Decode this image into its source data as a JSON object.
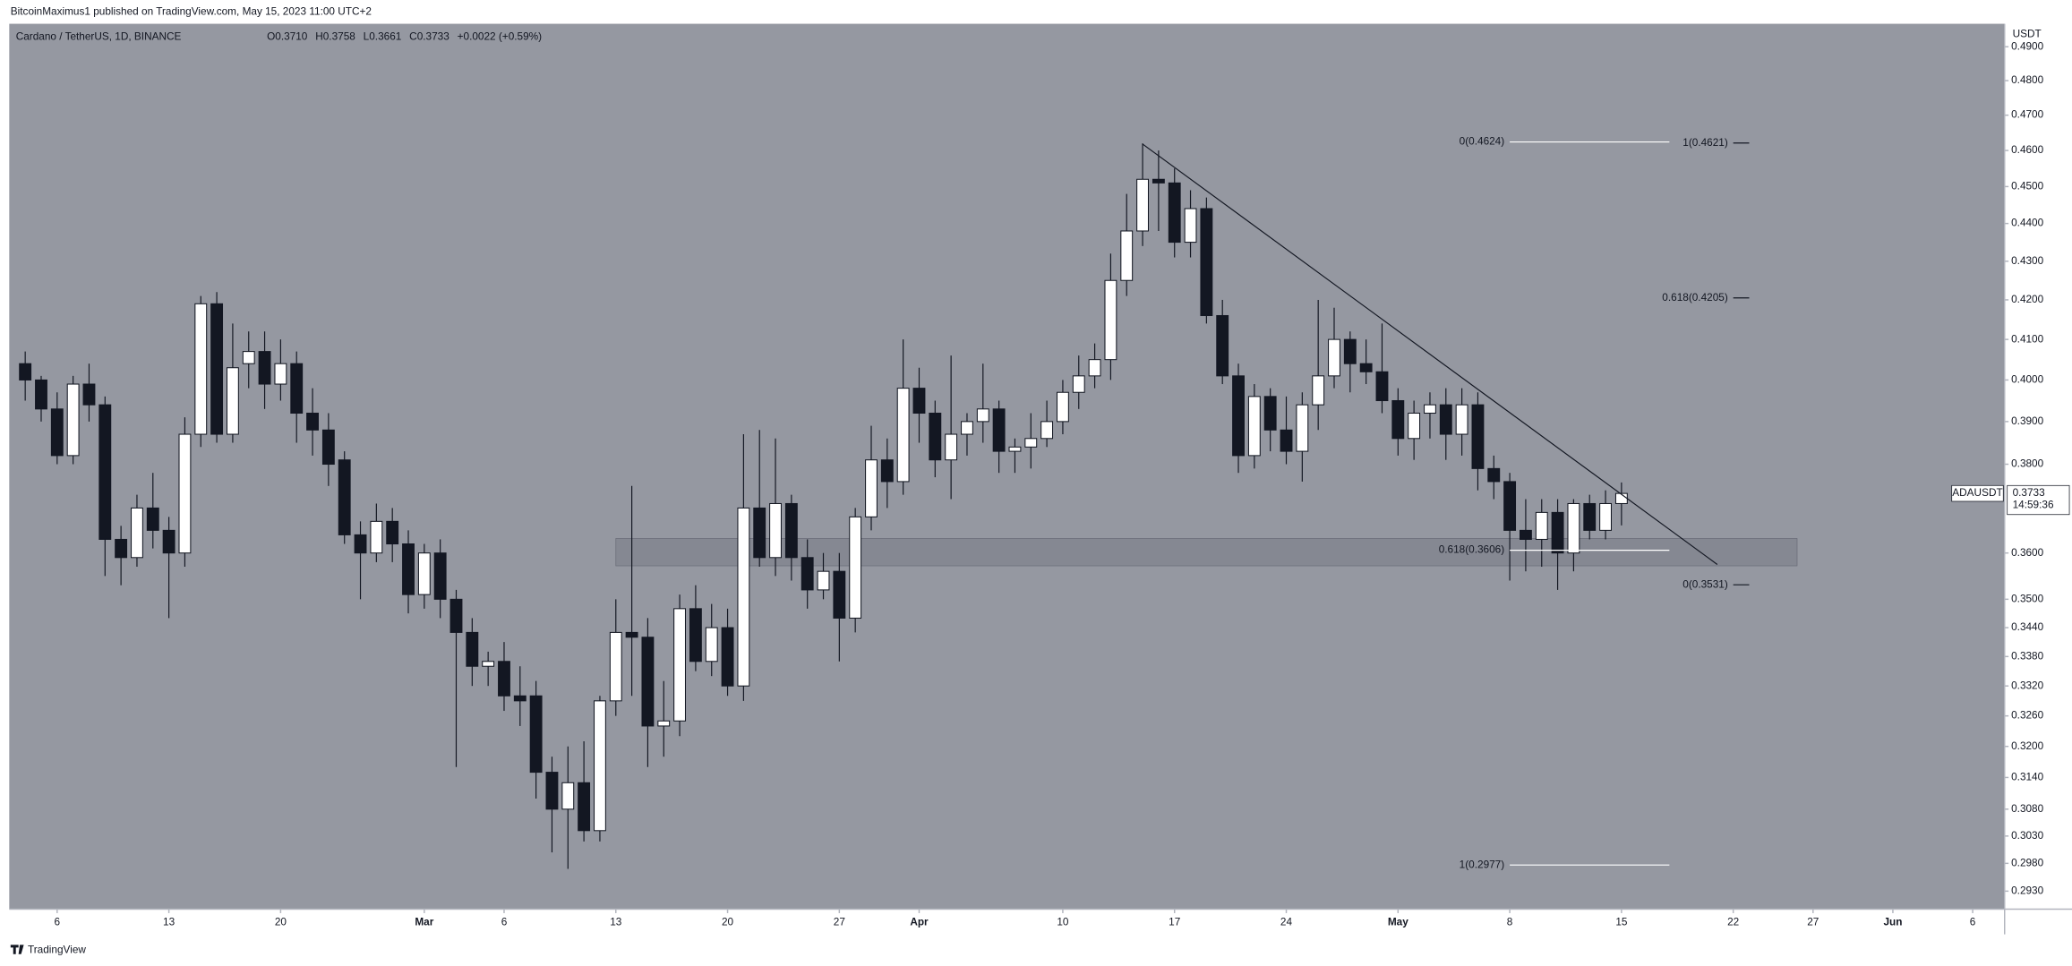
{
  "header": {
    "publisher": "BitcoinMaximus1 published on TradingView.com, May 15, 2023 11:00 UTC+2",
    "footer": "TradingView"
  },
  "chart_data": {
    "type": "candlestick",
    "symbol": "Cardano / TetherUS, 1D, BINANCE",
    "info": [
      "O0.3710",
      "H0.3758",
      "L0.3661",
      "C0.3733",
      "+0.0022 (+0.59%)"
    ],
    "y_unit": "USDT",
    "log_scale": true,
    "grid": false,
    "up_color": "#ffffff",
    "down_color": "#131722",
    "background": "#9598a1",
    "x": [
      "2023-02-04",
      "2023-02-05",
      "2023-02-06",
      "2023-02-07",
      "2023-02-08",
      "2023-02-09",
      "2023-02-10",
      "2023-02-11",
      "2023-02-12",
      "2023-02-13",
      "2023-02-14",
      "2023-02-15",
      "2023-02-16",
      "2023-02-17",
      "2023-02-18",
      "2023-02-19",
      "2023-02-20",
      "2023-02-21",
      "2023-02-22",
      "2023-02-23",
      "2023-02-24",
      "2023-02-25",
      "2023-02-26",
      "2023-02-27",
      "2023-02-28",
      "2023-03-01",
      "2023-03-02",
      "2023-03-03",
      "2023-03-04",
      "2023-03-05",
      "2023-03-06",
      "2023-03-07",
      "2023-03-08",
      "2023-03-09",
      "2023-03-10",
      "2023-03-11",
      "2023-03-12",
      "2023-03-13",
      "2023-03-14",
      "2023-03-15",
      "2023-03-16",
      "2023-03-17",
      "2023-03-18",
      "2023-03-19",
      "2023-03-20",
      "2023-03-21",
      "2023-03-22",
      "2023-03-23",
      "2023-03-24",
      "2023-03-25",
      "2023-03-26",
      "2023-03-27",
      "2023-03-28",
      "2023-03-29",
      "2023-03-30",
      "2023-03-31",
      "2023-04-01",
      "2023-04-02",
      "2023-04-03",
      "2023-04-04",
      "2023-04-05",
      "2023-04-06",
      "2023-04-07",
      "2023-04-08",
      "2023-04-09",
      "2023-04-10",
      "2023-04-11",
      "2023-04-12",
      "2023-04-13",
      "2023-04-14",
      "2023-04-15",
      "2023-04-16",
      "2023-04-17",
      "2023-04-18",
      "2023-04-19",
      "2023-04-20",
      "2023-04-21",
      "2023-04-22",
      "2023-04-23",
      "2023-04-24",
      "2023-04-25",
      "2023-04-26",
      "2023-04-27",
      "2023-04-28",
      "2023-04-29",
      "2023-04-30",
      "2023-05-01",
      "2023-05-02",
      "2023-05-03",
      "2023-05-04",
      "2023-05-05",
      "2023-05-06",
      "2023-05-07",
      "2023-05-08",
      "2023-05-09",
      "2023-05-10",
      "2023-05-11",
      "2023-05-12",
      "2023-05-13",
      "2023-05-14",
      "2023-05-15"
    ],
    "open": [
      0.404,
      0.4,
      0.393,
      0.382,
      0.399,
      0.394,
      0.363,
      0.359,
      0.37,
      0.365,
      0.36,
      0.387,
      0.419,
      0.387,
      0.404,
      0.407,
      0.399,
      0.404,
      0.392,
      0.388,
      0.381,
      0.364,
      0.36,
      0.367,
      0.362,
      0.351,
      0.36,
      0.35,
      0.343,
      0.336,
      0.337,
      0.33,
      0.33,
      0.315,
      0.308,
      0.313,
      0.304,
      0.329,
      0.343,
      0.342,
      0.324,
      0.325,
      0.348,
      0.337,
      0.344,
      0.332,
      0.37,
      0.359,
      0.371,
      0.359,
      0.352,
      0.356,
      0.346,
      0.368,
      0.381,
      0.376,
      0.398,
      0.392,
      0.381,
      0.387,
      0.39,
      0.393,
      0.383,
      0.384,
      0.386,
      0.39,
      0.397,
      0.401,
      0.405,
      0.425,
      0.438,
      0.452,
      0.451,
      0.435,
      0.444,
      0.416,
      0.401,
      0.382,
      0.396,
      0.388,
      0.383,
      0.394,
      0.401,
      0.41,
      0.404,
      0.402,
      0.395,
      0.386,
      0.392,
      0.394,
      0.387,
      0.394,
      0.379,
      0.376,
      0.365,
      0.363,
      0.369,
      0.36,
      0.371,
      0.365,
      0.371
    ],
    "high": [
      0.407,
      0.401,
      0.397,
      0.401,
      0.404,
      0.396,
      0.366,
      0.373,
      0.378,
      0.368,
      0.391,
      0.421,
      0.422,
      0.414,
      0.412,
      0.412,
      0.41,
      0.407,
      0.398,
      0.392,
      0.383,
      0.367,
      0.371,
      0.37,
      0.365,
      0.362,
      0.363,
      0.352,
      0.346,
      0.339,
      0.341,
      0.336,
      0.333,
      0.318,
      0.32,
      0.321,
      0.33,
      0.35,
      0.375,
      0.346,
      0.333,
      0.351,
      0.353,
      0.349,
      0.348,
      0.387,
      0.388,
      0.386,
      0.373,
      0.363,
      0.36,
      0.36,
      0.37,
      0.389,
      0.386,
      0.41,
      0.403,
      0.395,
      0.406,
      0.392,
      0.404,
      0.395,
      0.386,
      0.392,
      0.395,
      0.4,
      0.406,
      0.409,
      0.432,
      0.448,
      0.462,
      0.46,
      0.455,
      0.449,
      0.447,
      0.42,
      0.404,
      0.399,
      0.398,
      0.396,
      0.397,
      0.42,
      0.418,
      0.412,
      0.41,
      0.414,
      0.398,
      0.395,
      0.397,
      0.398,
      0.398,
      0.397,
      0.382,
      0.378,
      0.372,
      0.372,
      0.372,
      0.372,
      0.373,
      0.374,
      0.3758
    ],
    "low": [
      0.395,
      0.39,
      0.38,
      0.38,
      0.39,
      0.355,
      0.353,
      0.357,
      0.361,
      0.346,
      0.357,
      0.384,
      0.385,
      0.385,
      0.398,
      0.393,
      0.395,
      0.385,
      0.382,
      0.375,
      0.362,
      0.35,
      0.358,
      0.358,
      0.347,
      0.348,
      0.346,
      0.316,
      0.332,
      0.332,
      0.327,
      0.324,
      0.31,
      0.3,
      0.297,
      0.302,
      0.302,
      0.326,
      0.33,
      0.316,
      0.318,
      0.322,
      0.335,
      0.334,
      0.33,
      0.329,
      0.357,
      0.355,
      0.354,
      0.348,
      0.35,
      0.337,
      0.343,
      0.365,
      0.37,
      0.373,
      0.385,
      0.377,
      0.372,
      0.382,
      0.385,
      0.378,
      0.378,
      0.379,
      0.384,
      0.387,
      0.393,
      0.398,
      0.4,
      0.421,
      0.434,
      0.438,
      0.431,
      0.431,
      0.414,
      0.399,
      0.378,
      0.379,
      0.383,
      0.38,
      0.376,
      0.388,
      0.398,
      0.397,
      0.399,
      0.392,
      0.382,
      0.381,
      0.386,
      0.381,
      0.382,
      0.374,
      0.372,
      0.354,
      0.356,
      0.357,
      0.352,
      0.356,
      0.363,
      0.363,
      0.3661
    ],
    "close": [
      0.4,
      0.393,
      0.382,
      0.399,
      0.394,
      0.363,
      0.359,
      0.37,
      0.365,
      0.36,
      0.387,
      0.419,
      0.387,
      0.403,
      0.407,
      0.399,
      0.404,
      0.392,
      0.388,
      0.38,
      0.364,
      0.36,
      0.367,
      0.362,
      0.351,
      0.36,
      0.35,
      0.343,
      0.336,
      0.337,
      0.33,
      0.329,
      0.315,
      0.308,
      0.313,
      0.304,
      0.329,
      0.343,
      0.342,
      0.324,
      0.325,
      0.348,
      0.337,
      0.344,
      0.332,
      0.37,
      0.359,
      0.371,
      0.359,
      0.352,
      0.356,
      0.346,
      0.368,
      0.381,
      0.376,
      0.398,
      0.392,
      0.381,
      0.387,
      0.39,
      0.393,
      0.383,
      0.384,
      0.386,
      0.39,
      0.397,
      0.401,
      0.405,
      0.425,
      0.438,
      0.452,
      0.451,
      0.435,
      0.444,
      0.416,
      0.401,
      0.382,
      0.396,
      0.388,
      0.383,
      0.394,
      0.401,
      0.41,
      0.404,
      0.402,
      0.395,
      0.386,
      0.392,
      0.394,
      0.387,
      0.394,
      0.379,
      0.376,
      0.365,
      0.363,
      0.369,
      0.36,
      0.371,
      0.365,
      0.371,
      0.3733
    ],
    "xlim": [
      "2023-02-03",
      "2023-06-08"
    ],
    "xticks": [
      {
        "value": "2023-02-06",
        "label": "6"
      },
      {
        "value": "2023-02-13",
        "label": "13"
      },
      {
        "value": "2023-02-20",
        "label": "20"
      },
      {
        "value": "2023-03-01",
        "label": "Mar"
      },
      {
        "value": "2023-03-06",
        "label": "6"
      },
      {
        "value": "2023-03-13",
        "label": "13"
      },
      {
        "value": "2023-03-20",
        "label": "20"
      },
      {
        "value": "2023-03-27",
        "label": "27"
      },
      {
        "value": "2023-04-01",
        "label": "Apr"
      },
      {
        "value": "2023-04-10",
        "label": "10"
      },
      {
        "value": "2023-04-17",
        "label": "17"
      },
      {
        "value": "2023-04-24",
        "label": "24"
      },
      {
        "value": "2023-05-01",
        "label": "May"
      },
      {
        "value": "2023-05-08",
        "label": "8"
      },
      {
        "value": "2023-05-15",
        "label": "15"
      },
      {
        "value": "2023-05-22",
        "label": "22"
      },
      {
        "value": "2023-05-27",
        "label": "27"
      },
      {
        "value": "2023-06-01",
        "label": "Jun"
      },
      {
        "value": "2023-06-06",
        "label": "6"
      }
    ],
    "ylim": [
      0.2898,
      0.4969
    ],
    "yticks": [
      {
        "value": 0.49,
        "label": "0.4900"
      },
      {
        "value": 0.48,
        "label": "0.4800"
      },
      {
        "value": 0.47,
        "label": "0.4700"
      },
      {
        "value": 0.46,
        "label": "0.4600"
      },
      {
        "value": 0.45,
        "label": "0.4500"
      },
      {
        "value": 0.44,
        "label": "0.4400"
      },
      {
        "value": 0.43,
        "label": "0.4300"
      },
      {
        "value": 0.42,
        "label": "0.4200"
      },
      {
        "value": 0.41,
        "label": "0.4100"
      },
      {
        "value": 0.4,
        "label": "0.4000"
      },
      {
        "value": 0.39,
        "label": "0.3900"
      },
      {
        "value": 0.38,
        "label": "0.3800"
      },
      {
        "value": 0.36,
        "label": "0.3600"
      },
      {
        "value": 0.35,
        "label": "0.3500"
      },
      {
        "value": 0.344,
        "label": "0.3440"
      },
      {
        "value": 0.338,
        "label": "0.3380"
      },
      {
        "value": 0.332,
        "label": "0.3320"
      },
      {
        "value": 0.326,
        "label": "0.3260"
      },
      {
        "value": 0.32,
        "label": "0.3200"
      },
      {
        "value": 0.314,
        "label": "0.3140"
      },
      {
        "value": 0.308,
        "label": "0.3080"
      },
      {
        "value": 0.303,
        "label": "0.3030"
      },
      {
        "value": 0.298,
        "label": "0.2980"
      },
      {
        "value": 0.293,
        "label": "0.2930"
      }
    ],
    "zone": {
      "x": [
        "2023-03-13",
        "2023-05-26"
      ],
      "ylim": [
        0.3572,
        0.3632
      ],
      "color": "#787b86"
    },
    "trendline": {
      "x": [
        "2023-04-15",
        "2023-05-21"
      ],
      "y": [
        0.4618,
        0.3575
      ],
      "color": "#131722"
    },
    "annotations": [
      {
        "value": 0.4624,
        "label": "0(0.4624)",
        "x": [
          "2023-05-08",
          "2023-05-18"
        ],
        "color": "#ffffff"
      },
      {
        "value": 0.3606,
        "label": "0.618(0.3606)",
        "x": [
          "2023-05-08",
          "2023-05-18"
        ],
        "color": "#ffffff"
      },
      {
        "value": 0.2977,
        "label": "1(0.2977)",
        "x": [
          "2023-05-08",
          "2023-05-18"
        ],
        "color": "#ffffff"
      },
      {
        "value": 0.4621,
        "label": "1(0.4621)",
        "x": [
          "2023-05-22",
          "2023-05-23"
        ],
        "color": "#131722"
      },
      {
        "value": 0.4205,
        "label": "0.618(0.4205)",
        "x": [
          "2023-05-22",
          "2023-05-23"
        ],
        "color": "#131722"
      },
      {
        "value": 0.3531,
        "label": "0(0.3531)",
        "x": [
          "2023-05-22",
          "2023-05-23"
        ],
        "color": "#131722"
      }
    ],
    "price_label": {
      "name": "ADAUSDT",
      "value": 0.3733,
      "countdown": "14:59:36"
    }
  }
}
